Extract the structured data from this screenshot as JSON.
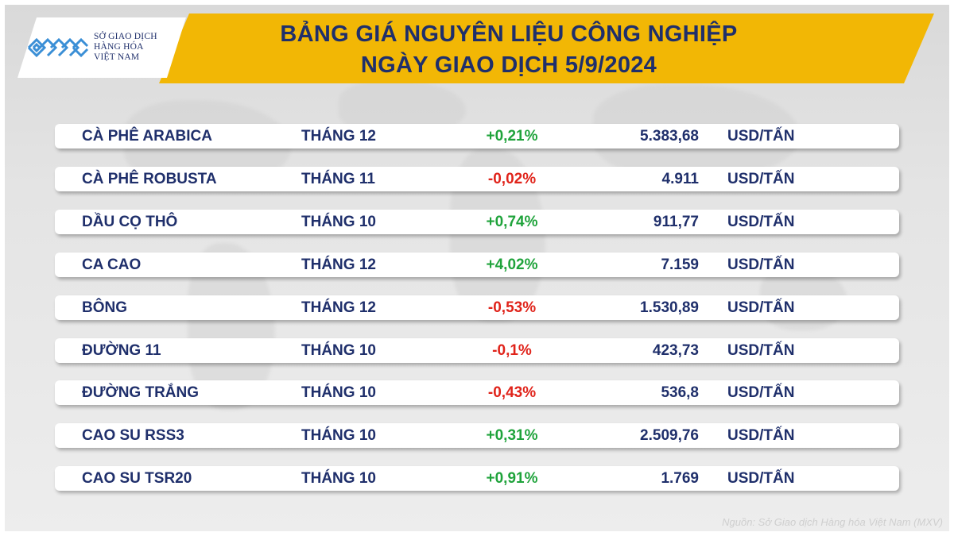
{
  "header": {
    "title_line1": "BẢNG GIÁ NGUYÊN LIỆU CÔNG NGHIỆP",
    "title_line2": "NGÀY GIAO DỊCH 5/9/2024",
    "banner_color": "#f2b705",
    "title_color": "#1f2f6b"
  },
  "logo": {
    "line1": "SỞ GIAO DỊCH",
    "line2": "HÀNG HÓA",
    "line3": "VIỆT NAM",
    "mark_color": "#3b8fd6"
  },
  "table": {
    "rows": [
      {
        "name": "CÀ PHÊ ARABICA",
        "month": "THÁNG 12",
        "change": "+0,21%",
        "direction": "up",
        "price": "5.383,68",
        "unit": "USD/TẤN"
      },
      {
        "name": "CÀ PHÊ ROBUSTA",
        "month": "THÁNG 11",
        "change": "-0,02%",
        "direction": "down",
        "price": "4.911",
        "unit": "USD/TẤN"
      },
      {
        "name": "DẦU CỌ THÔ",
        "month": "THÁNG 10",
        "change": "+0,74%",
        "direction": "up",
        "price": "911,77",
        "unit": "USD/TẤN"
      },
      {
        "name": "CA CAO",
        "month": "THÁNG 12",
        "change": "+4,02%",
        "direction": "up",
        "price": "7.159",
        "unit": "USD/TẤN"
      },
      {
        "name": "BÔNG",
        "month": "THÁNG 12",
        "change": "-0,53%",
        "direction": "down",
        "price": "1.530,89",
        "unit": "USD/TẤN"
      },
      {
        "name": "ĐƯỜNG 11",
        "month": "THÁNG 10",
        "change": "-0,1%",
        "direction": "down",
        "price": "423,73",
        "unit": "USD/TẤN"
      },
      {
        "name": "ĐƯỜNG TRẮNG",
        "month": "THÁNG 10",
        "change": "-0,43%",
        "direction": "down",
        "price": "536,8",
        "unit": "USD/TẤN"
      },
      {
        "name": "CAO SU RSS3",
        "month": "THÁNG 10",
        "change": "+0,31%",
        "direction": "up",
        "price": "2.509,76",
        "unit": "USD/TẤN"
      },
      {
        "name": "CAO SU TSR20",
        "month": "THÁNG 10",
        "change": "+0,91%",
        "direction": "up",
        "price": "1.769",
        "unit": "USD/TẤN"
      }
    ],
    "up_color": "#1fa33b",
    "down_color": "#e0231a"
  },
  "footer": {
    "source": "Nguồn: Sở Giao dịch Hàng hóa Việt Nam (MXV)"
  }
}
